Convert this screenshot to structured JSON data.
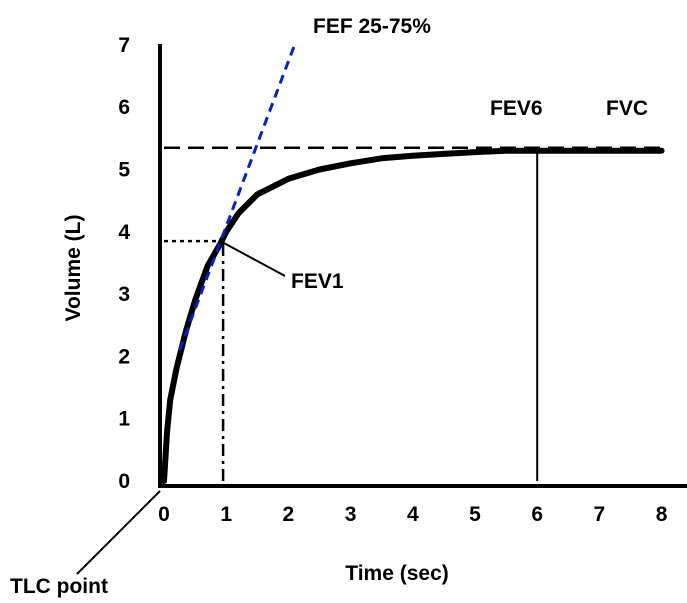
{
  "chart_data": {
    "type": "line",
    "title": "",
    "xlabel": "Time (sec)",
    "ylabel": "Volume (L)",
    "xlim": [
      0,
      8
    ],
    "ylim": [
      0,
      7
    ],
    "x_ticks": [
      "0",
      "1",
      "2",
      "3",
      "4",
      "5",
      "6",
      "7",
      "8"
    ],
    "y_ticks": [
      "0",
      "1",
      "2",
      "3",
      "4",
      "5",
      "6",
      "7"
    ],
    "grid": false,
    "legend": "none",
    "series": [
      {
        "style": "solid-thick",
        "color": "#000000",
        "x": [
          0,
          0.05,
          0.1,
          0.2,
          0.35,
          0.5,
          0.7,
          0.9,
          1.0,
          1.2,
          1.5,
          2.0,
          2.5,
          3.0,
          3.5,
          4.0,
          4.5,
          5.0,
          5.5,
          6.0,
          7.0,
          8.0
        ],
        "y": [
          0,
          0.8,
          1.3,
          1.8,
          2.4,
          2.9,
          3.45,
          3.8,
          4.0,
          4.3,
          4.6,
          4.85,
          5.0,
          5.1,
          5.18,
          5.22,
          5.25,
          5.28,
          5.3,
          5.3,
          5.3,
          5.3
        ]
      },
      {
        "style": "dashed",
        "color": "#0022cc",
        "x": [
          0.25,
          2.1
        ],
        "y": [
          2.1,
          7.0
        ]
      }
    ],
    "reference_lines": [
      {
        "kind": "horizontal-dashed",
        "y": 5.35,
        "x_from": 0,
        "x_to": 8
      },
      {
        "kind": "horizontal-dotted",
        "y": 3.85,
        "x_from": 0,
        "x_to": 0.95
      },
      {
        "kind": "vertical-dashdot",
        "x": 0.95,
        "y_from": 0,
        "y_to": 3.85
      },
      {
        "kind": "vertical-solid",
        "x": 6.0,
        "y_from": 0,
        "y_to": 5.35
      }
    ],
    "annotations": {
      "fef": "FEF 25-75%",
      "fev6": "FEV6",
      "fvc": "FVC",
      "fev1": "FEV1",
      "tlc": "TLC point"
    }
  }
}
